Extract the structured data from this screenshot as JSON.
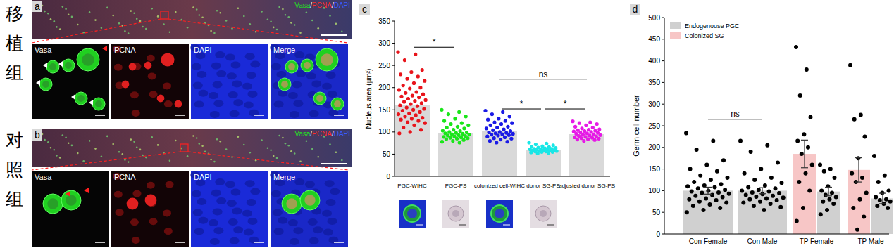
{
  "panels": [
    {
      "label": "a",
      "group": "移植组",
      "channels_title": [
        "Vasa",
        "/",
        "PCNA",
        "/",
        "DAPI"
      ],
      "insets": [
        "Vasa",
        "PCNA",
        "DAPI",
        "Merge"
      ]
    },
    {
      "label": "b",
      "group": "对照组",
      "channels_title": [
        "Vasa",
        "/",
        "PCNA",
        "/",
        "DAPI"
      ],
      "insets": [
        "Vasa",
        "PCNA",
        "DAPI",
        "Merge"
      ]
    }
  ],
  "chart_data": [
    {
      "type": "bar_scatter",
      "title": "c",
      "y_label": "Nucleus area (μm²)",
      "categories": [
        "PGC-WIHC",
        "PGC-PS",
        "colonized cell-WIHC",
        "donor SG-PS",
        "adjusted donor SG-PS"
      ],
      "values": [
        160,
        97,
        103,
        60,
        95
      ],
      "color": "#d9d9d9",
      "colors": [
        "#e8141b",
        "#19e619",
        "#1a1ae6",
        "#19e6e6",
        "#e619e6"
      ],
      "points": [
        [
          280,
          275,
          262,
          240,
          235,
          230,
          225,
          220,
          215,
          210,
          205,
          200,
          198,
          195,
          190,
          188,
          185,
          182,
          180,
          178,
          175,
          172,
          170,
          168,
          165,
          163,
          160,
          158,
          155,
          152,
          150,
          148,
          145,
          142,
          140,
          138,
          135,
          132,
          130,
          128,
          125,
          122,
          120,
          115,
          110,
          105,
          100,
          97
        ],
        [
          150,
          145,
          140,
          135,
          130,
          125,
          120,
          118,
          115,
          112,
          110,
          108,
          105,
          103,
          102,
          100,
          99,
          98,
          97,
          96,
          95,
          94,
          93,
          92,
          91,
          90,
          89,
          88,
          87,
          86,
          85,
          84,
          82,
          80,
          78,
          76
        ],
        [
          148,
          145,
          140,
          135,
          130,
          128,
          125,
          122,
          120,
          118,
          115,
          112,
          110,
          108,
          106,
          104,
          102,
          100,
          99,
          98,
          97,
          96,
          95,
          94,
          93,
          92,
          90,
          88,
          86,
          85,
          83,
          80,
          78,
          76
        ],
        [
          76,
          74,
          72,
          70,
          68,
          67,
          66,
          65,
          64,
          63,
          62,
          62,
          61,
          61,
          60,
          60,
          59,
          59,
          58,
          58,
          57,
          57,
          56,
          56,
          55,
          55,
          54,
          53,
          52
        ],
        [
          124,
          122,
          120,
          118,
          115,
          112,
          110,
          108,
          106,
          105,
          104,
          103,
          102,
          101,
          100,
          99,
          98,
          97,
          96,
          95,
          94,
          93,
          92,
          91,
          90,
          89,
          88,
          87,
          86,
          85,
          84,
          83,
          82,
          80
        ]
      ],
      "ylim": [
        0,
        350
      ],
      "yticks": [
        0,
        50,
        100,
        150,
        200,
        250,
        300,
        350
      ],
      "annotations": [
        {
          "from": 0,
          "to": 1,
          "y": 291,
          "text": "*"
        },
        {
          "from": 2,
          "to": 4,
          "y": 219,
          "text": "ns"
        },
        {
          "from": 2,
          "to": 3,
          "y": 152,
          "text": "*"
        },
        {
          "from": 3,
          "to": 4,
          "y": 152,
          "text": "*"
        }
      ]
    },
    {
      "type": "bar",
      "title": "d",
      "y_label": "Germ cell number",
      "categories": [
        "Con Female",
        "Con Male",
        "TP Female",
        "TP Male"
      ],
      "legend": "top-left",
      "series": [
        {
          "name": "Endogenouse PGC",
          "color": "#d0d0d0",
          "values": [
            100,
            100,
            98,
            82
          ],
          "errors": [
            8,
            7,
            10,
            12
          ],
          "points": [
            [
              233,
              215,
              195,
              170,
              160,
              150,
              145,
              135,
              130,
              125,
              120,
              115,
              112,
              110,
              108,
              105,
              102,
              100,
              98,
              96,
              95,
              93,
              90,
              88,
              85,
              82,
              80,
              78,
              75,
              72,
              68,
              65,
              60,
              55,
              50
            ],
            [
              215,
              205,
              190,
              165,
              150,
              140,
              130,
              125,
              118,
              112,
              108,
              105,
              102,
              100,
              98,
              96,
              94,
              92,
              90,
              88,
              86,
              84,
              82,
              80,
              78,
              75,
              72,
              70,
              65,
              62,
              55
            ],
            [
              160,
              150,
              145,
              130,
              110,
              100,
              95,
              90,
              85,
              80,
              75,
              70,
              55,
              45
            ],
            [
              180,
              135,
              120,
              100,
              95,
              85,
              80,
              78,
              75,
              70,
              65,
              60
            ]
          ]
        },
        {
          "name": "Colonized SG",
          "color": "#f7c6c6",
          "values": [
            null,
            null,
            185,
            148
          ],
          "errors": [
            null,
            null,
            32,
            28
          ],
          "points": [
            [],
            [],
            [
              432,
              380,
              320,
              270,
              230,
              215,
              200,
              185,
              160,
              140,
              120,
              100,
              60,
              30
            ],
            [
              390,
              275,
              265,
              225,
              175,
              140,
              130,
              120,
              95,
              80,
              60,
              40,
              10
            ]
          ]
        }
      ],
      "ylim": [
        0,
        500
      ],
      "yticks": [
        0,
        50,
        100,
        150,
        200,
        250,
        300,
        350,
        400,
        450,
        500
      ],
      "annotations": [
        {
          "from": 0,
          "to": 1,
          "y": 265,
          "text": "ns"
        }
      ]
    }
  ]
}
